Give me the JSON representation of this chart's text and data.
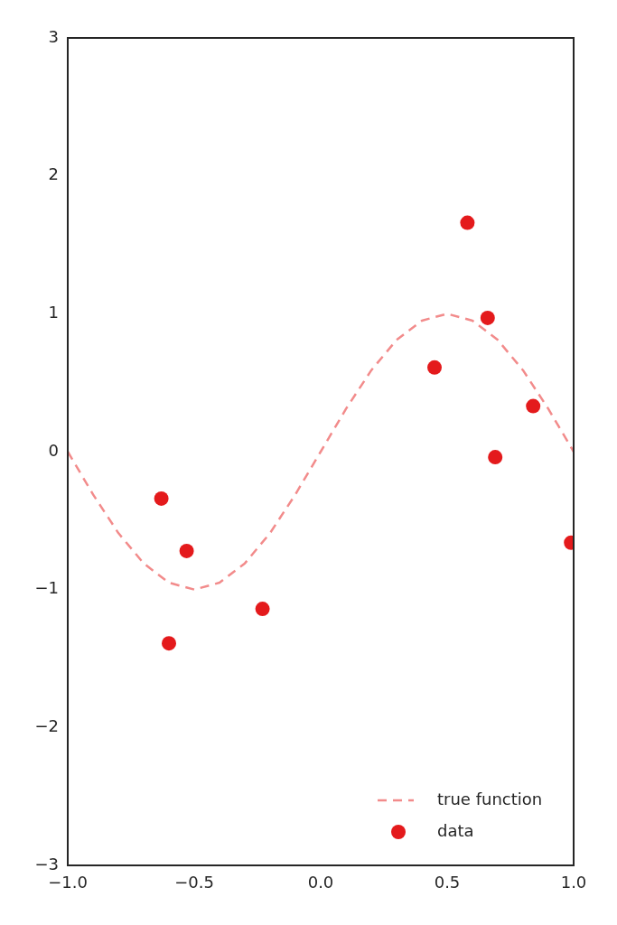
{
  "chart_data": {
    "type": "scatter",
    "xlim": [
      -1,
      1
    ],
    "ylim": [
      -3,
      3
    ],
    "xticks": [
      {
        "value": -1,
        "label": "−1.0"
      },
      {
        "value": -0.5,
        "label": "−0.5"
      },
      {
        "value": 0,
        "label": "0.0"
      },
      {
        "value": 0.5,
        "label": "0.5"
      },
      {
        "value": 1,
        "label": "1.0"
      }
    ],
    "yticks": [
      {
        "value": -3,
        "label": "−3"
      },
      {
        "value": -2,
        "label": "−2"
      },
      {
        "value": -1,
        "label": "−1"
      },
      0,
      1,
      2,
      3
    ],
    "grid": false,
    "legend": "bottom right",
    "series": [
      {
        "name": "true function",
        "type": "line",
        "color": "#f28b8b",
        "line_style": "dashed",
        "marker": "none",
        "x": [
          -1,
          -0.9,
          -0.8,
          -0.7,
          -0.6,
          -0.5,
          -0.4,
          -0.3,
          -0.2,
          -0.1,
          0,
          0.1,
          0.2,
          0.3,
          0.4,
          0.5,
          0.6,
          0.7,
          0.8,
          0.9,
          1
        ],
        "values": [
          0,
          -0.31,
          -0.59,
          -0.81,
          -0.95,
          -1,
          -0.95,
          -0.81,
          -0.59,
          -0.31,
          0,
          0.31,
          0.59,
          0.81,
          0.95,
          1,
          0.95,
          0.81,
          0.59,
          0.31,
          0
        ]
      },
      {
        "name": "data",
        "type": "scatter",
        "color": "#e41a1c",
        "marker": "circle",
        "x": [
          -0.63,
          -0.53,
          -0.6,
          -0.23,
          0.45,
          0.58,
          0.66,
          0.69,
          0.84,
          0.99
        ],
        "values": [
          -0.34,
          -0.72,
          -1.39,
          -1.14,
          0.61,
          1.66,
          0.97,
          -0.04,
          0.33,
          -0.66
        ]
      }
    ]
  }
}
